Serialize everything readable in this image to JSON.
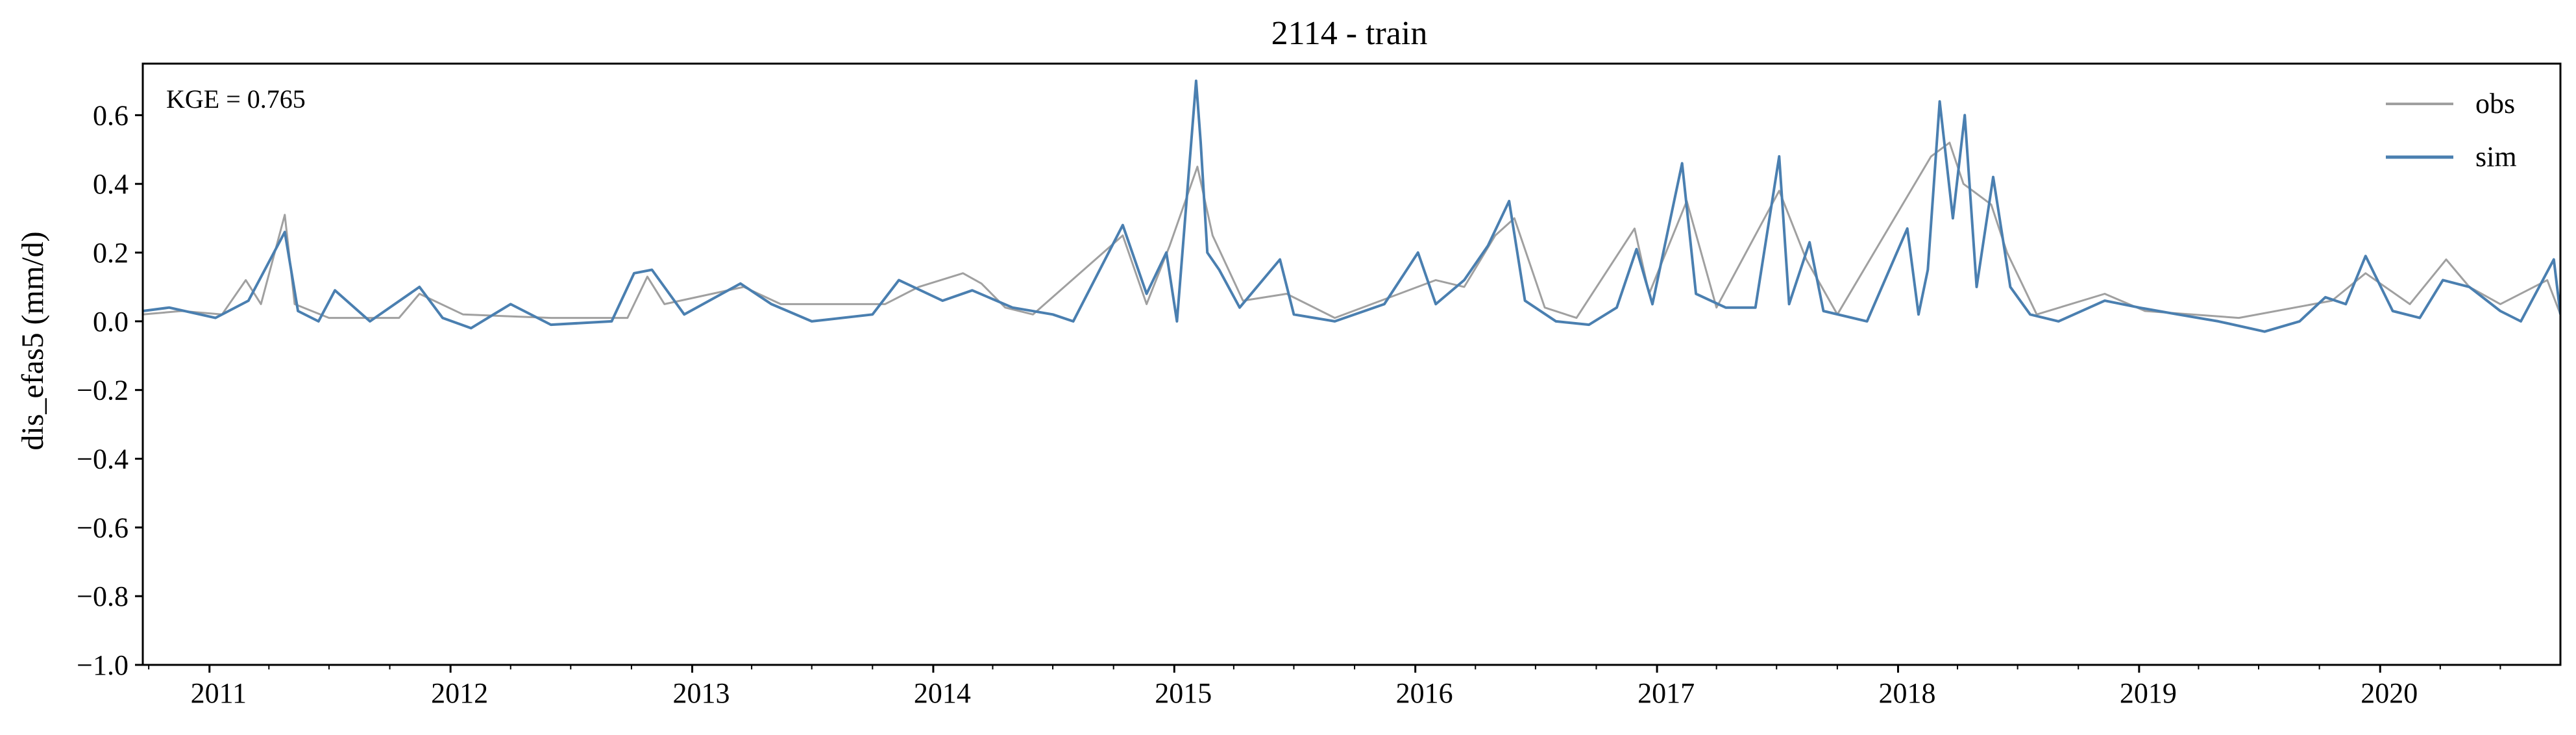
{
  "chart_data": {
    "type": "line",
    "title": "2114 - train",
    "ylabel": "dis_efas5 (mm/d)",
    "xlabel": "",
    "annotation": "KGE = 0.765",
    "xlim": [
      "2010-09-22",
      "2020-09-30"
    ],
    "ylim": [
      -1.0,
      0.75
    ],
    "yticks": [
      -1.0,
      -0.8,
      -0.6,
      -0.4,
      -0.2,
      0.0,
      0.2,
      0.4,
      0.6
    ],
    "ytick_labels": [
      "−1.0",
      "−0.8",
      "−0.6",
      "−0.4",
      "−0.2",
      "0.0",
      "0.2",
      "0.4",
      "0.6"
    ],
    "xticks": [
      "2011-01-01",
      "2012-01-01",
      "2013-01-01",
      "2014-01-01",
      "2015-01-01",
      "2016-01-01",
      "2017-01-01",
      "2018-01-01",
      "2019-01-01",
      "2020-01-01"
    ],
    "xtick_labels": [
      "2011",
      "2012",
      "2013",
      "2014",
      "2015",
      "2016",
      "2017",
      "2018",
      "2019",
      "2020"
    ],
    "grid": false,
    "legend": "top-right",
    "series": [
      {
        "name": "obs",
        "color": "#a0a0a0",
        "points": [
          [
            "2010-09-22",
            0.02
          ],
          [
            "2010-11-20",
            0.03
          ],
          [
            "2011-01-20",
            0.02
          ],
          [
            "2011-02-25",
            0.12
          ],
          [
            "2011-03-20",
            0.05
          ],
          [
            "2011-04-25",
            0.31
          ],
          [
            "2011-05-10",
            0.05
          ],
          [
            "2011-07-01",
            0.01
          ],
          [
            "2011-10-15",
            0.01
          ],
          [
            "2011-11-15",
            0.08
          ],
          [
            "2012-01-20",
            0.02
          ],
          [
            "2012-06-01",
            0.01
          ],
          [
            "2012-09-25",
            0.01
          ],
          [
            "2012-10-25",
            0.13
          ],
          [
            "2012-11-20",
            0.05
          ],
          [
            "2013-03-20",
            0.1
          ],
          [
            "2013-05-15",
            0.05
          ],
          [
            "2013-10-20",
            0.05
          ],
          [
            "2013-12-10",
            0.1
          ],
          [
            "2014-02-15",
            0.14
          ],
          [
            "2014-03-15",
            0.11
          ],
          [
            "2014-04-20",
            0.04
          ],
          [
            "2014-06-01",
            0.02
          ],
          [
            "2014-10-15",
            0.25
          ],
          [
            "2014-11-20",
            0.05
          ],
          [
            "2014-12-25",
            0.22
          ],
          [
            "2015-02-05",
            0.45
          ],
          [
            "2015-02-28",
            0.25
          ],
          [
            "2015-04-15",
            0.06
          ],
          [
            "2015-06-20",
            0.08
          ],
          [
            "2015-09-01",
            0.01
          ],
          [
            "2016-02-01",
            0.12
          ],
          [
            "2016-03-15",
            0.1
          ],
          [
            "2016-05-01",
            0.25
          ],
          [
            "2016-05-30",
            0.3
          ],
          [
            "2016-07-15",
            0.04
          ],
          [
            "2016-09-01",
            0.01
          ],
          [
            "2016-11-28",
            0.27
          ],
          [
            "2016-12-20",
            0.08
          ],
          [
            "2017-02-15",
            0.35
          ],
          [
            "2017-04-01",
            0.04
          ],
          [
            "2017-07-05",
            0.38
          ],
          [
            "2017-08-15",
            0.18
          ],
          [
            "2017-10-01",
            0.02
          ],
          [
            "2018-02-20",
            0.48
          ],
          [
            "2018-03-20",
            0.52
          ],
          [
            "2018-04-10",
            0.4
          ],
          [
            "2018-05-22",
            0.34
          ],
          [
            "2018-06-15",
            0.2
          ],
          [
            "2018-07-30",
            0.02
          ],
          [
            "2018-11-10",
            0.08
          ],
          [
            "2019-01-10",
            0.03
          ],
          [
            "2019-06-01",
            0.01
          ],
          [
            "2019-10-20",
            0.06
          ],
          [
            "2019-12-10",
            0.14
          ],
          [
            "2020-02-15",
            0.05
          ],
          [
            "2020-04-10",
            0.18
          ],
          [
            "2020-05-15",
            0.1
          ],
          [
            "2020-07-01",
            0.05
          ],
          [
            "2020-09-10",
            0.12
          ],
          [
            "2020-09-30",
            0.02
          ]
        ]
      },
      {
        "name": "sim",
        "color": "#4a7fb0",
        "points": [
          [
            "2010-09-22",
            0.03
          ],
          [
            "2010-11-01",
            0.04
          ],
          [
            "2011-01-10",
            0.01
          ],
          [
            "2011-03-01",
            0.06
          ],
          [
            "2011-04-25",
            0.26
          ],
          [
            "2011-05-15",
            0.03
          ],
          [
            "2011-06-15",
            0.0
          ],
          [
            "2011-07-10",
            0.09
          ],
          [
            "2011-09-01",
            0.0
          ],
          [
            "2011-11-15",
            0.1
          ],
          [
            "2011-12-20",
            0.01
          ],
          [
            "2012-02-01",
            -0.02
          ],
          [
            "2012-04-01",
            0.05
          ],
          [
            "2012-06-01",
            -0.01
          ],
          [
            "2012-09-01",
            0.0
          ],
          [
            "2012-10-05",
            0.14
          ],
          [
            "2012-11-01",
            0.15
          ],
          [
            "2012-12-20",
            0.02
          ],
          [
            "2013-03-15",
            0.11
          ],
          [
            "2013-05-01",
            0.05
          ],
          [
            "2013-07-01",
            0.0
          ],
          [
            "2013-10-01",
            0.02
          ],
          [
            "2013-11-10",
            0.12
          ],
          [
            "2014-01-15",
            0.06
          ],
          [
            "2014-03-01",
            0.09
          ],
          [
            "2014-05-01",
            0.04
          ],
          [
            "2014-07-01",
            0.02
          ],
          [
            "2014-08-01",
            0.0
          ],
          [
            "2014-10-15",
            0.28
          ],
          [
            "2014-11-20",
            0.08
          ],
          [
            "2014-12-20",
            0.2
          ],
          [
            "2015-01-05",
            0.0
          ],
          [
            "2015-02-03",
            0.7
          ],
          [
            "2015-02-10",
            0.52
          ],
          [
            "2015-02-20",
            0.2
          ],
          [
            "2015-03-10",
            0.15
          ],
          [
            "2015-04-10",
            0.04
          ],
          [
            "2015-06-10",
            0.18
          ],
          [
            "2015-07-01",
            0.02
          ],
          [
            "2015-09-01",
            0.0
          ],
          [
            "2015-11-15",
            0.05
          ],
          [
            "2016-01-05",
            0.2
          ],
          [
            "2016-02-01",
            0.05
          ],
          [
            "2016-03-15",
            0.12
          ],
          [
            "2016-04-20",
            0.22
          ],
          [
            "2016-05-22",
            0.35
          ],
          [
            "2016-06-15",
            0.06
          ],
          [
            "2016-08-01",
            0.0
          ],
          [
            "2016-09-20",
            -0.01
          ],
          [
            "2016-11-01",
            0.04
          ],
          [
            "2016-12-01",
            0.21
          ],
          [
            "2016-12-25",
            0.05
          ],
          [
            "2017-02-08",
            0.46
          ],
          [
            "2017-03-01",
            0.08
          ],
          [
            "2017-04-15",
            0.04
          ],
          [
            "2017-05-30",
            0.04
          ],
          [
            "2017-07-05",
            0.48
          ],
          [
            "2017-07-20",
            0.05
          ],
          [
            "2017-08-20",
            0.23
          ],
          [
            "2017-09-10",
            0.03
          ],
          [
            "2017-11-15",
            0.0
          ],
          [
            "2018-01-15",
            0.27
          ],
          [
            "2018-02-01",
            0.02
          ],
          [
            "2018-02-15",
            0.15
          ],
          [
            "2018-03-05",
            0.64
          ],
          [
            "2018-03-25",
            0.3
          ],
          [
            "2018-04-12",
            0.6
          ],
          [
            "2018-04-30",
            0.1
          ],
          [
            "2018-05-25",
            0.42
          ],
          [
            "2018-06-20",
            0.1
          ],
          [
            "2018-07-20",
            0.02
          ],
          [
            "2018-09-01",
            0.0
          ],
          [
            "2018-11-10",
            0.06
          ],
          [
            "2019-01-01",
            0.04
          ],
          [
            "2019-03-01",
            0.02
          ],
          [
            "2019-05-01",
            0.0
          ],
          [
            "2019-07-10",
            -0.03
          ],
          [
            "2019-09-01",
            0.0
          ],
          [
            "2019-10-10",
            0.07
          ],
          [
            "2019-11-10",
            0.05
          ],
          [
            "2019-12-10",
            0.19
          ],
          [
            "2020-01-20",
            0.03
          ],
          [
            "2020-03-01",
            0.01
          ],
          [
            "2020-04-05",
            0.12
          ],
          [
            "2020-05-15",
            0.1
          ],
          [
            "2020-07-01",
            0.03
          ],
          [
            "2020-08-01",
            0.0
          ],
          [
            "2020-09-20",
            0.18
          ],
          [
            "2020-09-30",
            0.02
          ]
        ]
      }
    ]
  }
}
